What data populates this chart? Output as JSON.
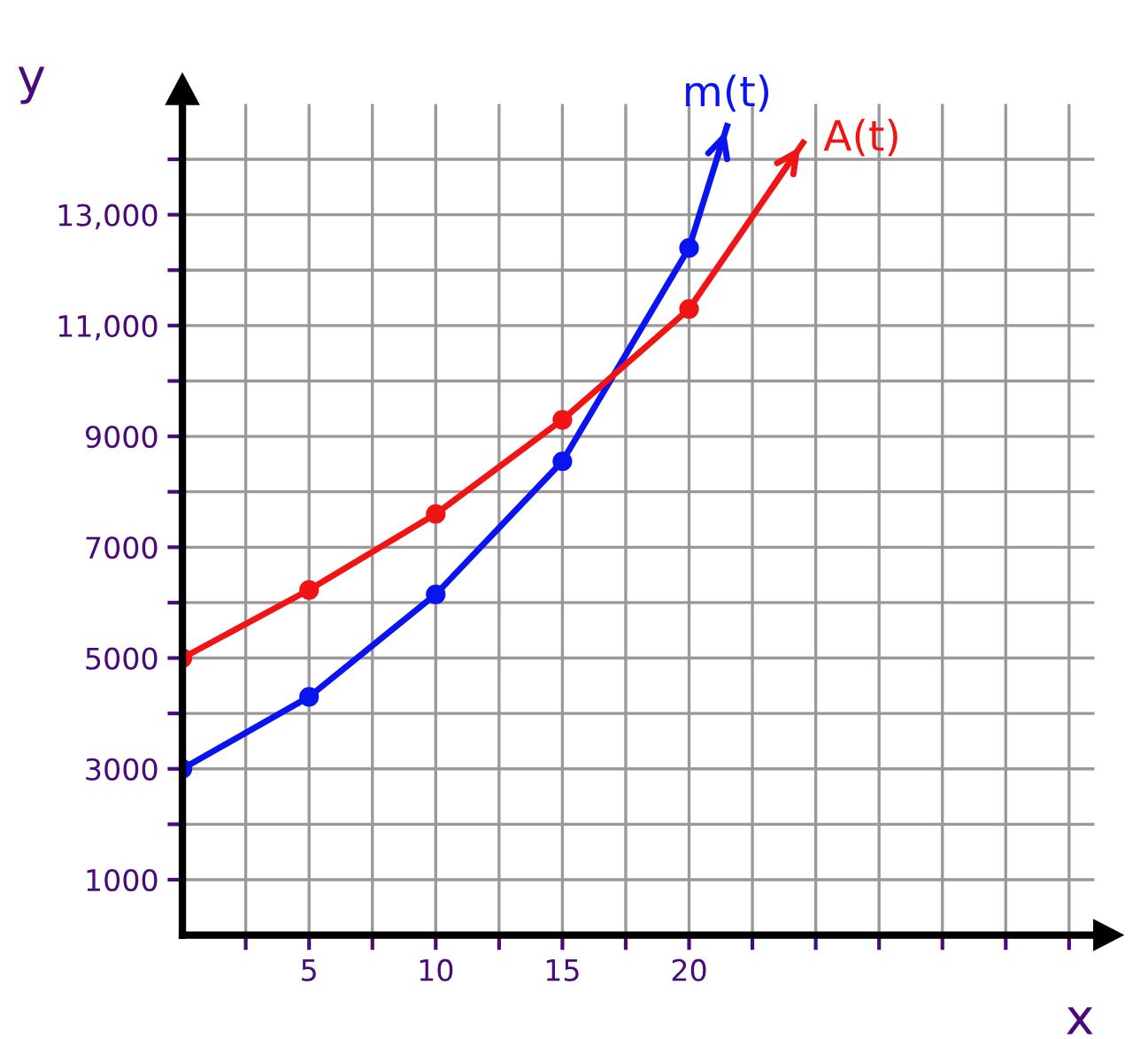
{
  "chart_data": {
    "type": "line",
    "xlabel": "x",
    "ylabel": "y",
    "xlim": [
      0,
      36
    ],
    "ylim": [
      0,
      15000
    ],
    "xticks": [
      {
        "value": 2.5,
        "label": null
      },
      5,
      {
        "value": 7.5,
        "label": null
      },
      10,
      {
        "value": 12.5,
        "label": null
      },
      15,
      {
        "value": 17.5,
        "label": null
      },
      20,
      {
        "value": 22.5,
        "label": null
      },
      {
        "value": 25,
        "label": null
      },
      {
        "value": 27.5,
        "label": null
      },
      {
        "value": 30,
        "label": null
      },
      {
        "value": 32.5,
        "label": null
      },
      {
        "value": 35,
        "label": null
      }
    ],
    "yticks": [
      {
        "value": 1000,
        "label": "1000"
      },
      {
        "value": 2000,
        "label": null
      },
      {
        "value": 3000,
        "label": "3000"
      },
      {
        "value": 4000,
        "label": null
      },
      {
        "value": 5000,
        "label": "5000"
      },
      {
        "value": 6000,
        "label": null
      },
      {
        "value": 7000,
        "label": "7000"
      },
      {
        "value": 8000,
        "label": null
      },
      {
        "value": 9000,
        "label": "9000"
      },
      {
        "value": 10000,
        "label": null
      },
      {
        "value": 11000,
        "label": "11,000"
      },
      {
        "value": 12000,
        "label": null
      },
      {
        "value": 13000,
        "label": "13,000"
      },
      {
        "value": 14000,
        "label": null
      }
    ],
    "grid": true,
    "marker": "circle",
    "line_style": "solid",
    "series": [
      {
        "name": "m(t)",
        "color": "#0a14f0",
        "x": [
          0,
          5,
          10,
          15,
          20,
          21.5
        ],
        "values": [
          3000,
          4300,
          6150,
          8550,
          12400,
          14600
        ]
      },
      {
        "name": "A(t)",
        "color": "#f01414",
        "x": [
          0,
          5,
          10,
          15,
          20,
          24.5
        ],
        "values": [
          5000,
          6230,
          7600,
          9300,
          11300,
          14300
        ]
      }
    ]
  }
}
